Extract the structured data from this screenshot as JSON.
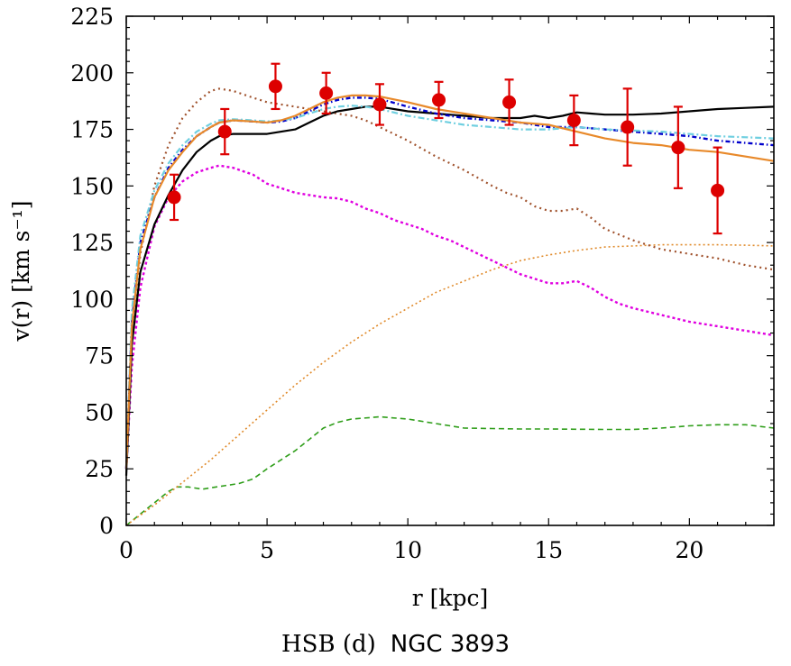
{
  "chart_data": {
    "type": "line",
    "xlabel": "r [kpc]",
    "ylabel": "v(r) [km s⁻¹]",
    "xlim": [
      0,
      23
    ],
    "ylim": [
      0,
      225
    ],
    "xticks": [
      0,
      5,
      10,
      15,
      20
    ],
    "yticks": [
      0,
      25,
      50,
      75,
      100,
      125,
      150,
      175,
      200,
      225
    ],
    "grid": false,
    "caption_left": "HSB (d)",
    "caption_right": "NGC 3893",
    "observed": {
      "color": "#dd0000",
      "points": [
        {
          "x": 1.7,
          "y": 145,
          "err": 10
        },
        {
          "x": 3.5,
          "y": 174,
          "err": 10
        },
        {
          "x": 5.3,
          "y": 194,
          "err": 10
        },
        {
          "x": 7.1,
          "y": 191,
          "err": 9
        },
        {
          "x": 9.0,
          "y": 186,
          "err": 9
        },
        {
          "x": 11.1,
          "y": 188,
          "err": 8
        },
        {
          "x": 13.6,
          "y": 187,
          "err": 10
        },
        {
          "x": 15.9,
          "y": 179,
          "err": 11
        },
        {
          "x": 17.8,
          "y": 176,
          "err": 17
        },
        {
          "x": 19.6,
          "y": 167,
          "err": 18
        },
        {
          "x": 21.0,
          "y": 148,
          "err": 19
        }
      ]
    },
    "series": [
      {
        "color": "#2f9e1a",
        "dash": "6,4",
        "width": 1.6,
        "x": [
          0,
          0.5,
          1,
          1.5,
          1.8,
          2.2,
          2.7,
          3.2,
          4,
          4.5,
          5,
          5.5,
          6,
          6.5,
          7,
          7.5,
          8,
          9,
          10,
          11,
          12,
          13,
          14,
          15,
          16,
          17,
          18,
          19,
          20,
          21,
          22,
          23
        ],
        "y": [
          0,
          5,
          10,
          15,
          17,
          17,
          16,
          17,
          18.5,
          20.5,
          25,
          29,
          33,
          38,
          43,
          45.5,
          47,
          48,
          47,
          45,
          43,
          42.8,
          42.6,
          42.6,
          42.5,
          42.4,
          42.4,
          43,
          44,
          44.5,
          44.5,
          43
        ]
      },
      {
        "color": "#e08a2a",
        "dash": "2,3",
        "width": 1.6,
        "x": [
          0,
          1,
          2,
          3,
          4,
          5,
          6,
          7,
          8,
          9,
          10,
          11,
          12,
          13,
          14,
          15,
          16,
          17,
          18,
          19,
          20,
          21,
          22,
          23
        ],
        "y": [
          0,
          9,
          19,
          29,
          40,
          51,
          62,
          72,
          81,
          89,
          96,
          103,
          108,
          113,
          117,
          119.5,
          121.5,
          123,
          123.5,
          124,
          124,
          124,
          123.8,
          123.5
        ]
      },
      {
        "color": "#e000e0",
        "dash": "3,3",
        "width": 2.4,
        "x": [
          0,
          0.2,
          0.5,
          1,
          1.5,
          2,
          2.5,
          3,
          3.3,
          3.8,
          4.5,
          5,
          5.5,
          6,
          6.5,
          7,
          7.5,
          8,
          8.5,
          9,
          9.5,
          10,
          10.5,
          11,
          11.5,
          12,
          12.5,
          13,
          13.5,
          14,
          14.5,
          15,
          15.5,
          16,
          16.5,
          17,
          17.5,
          18,
          19,
          20,
          21,
          22,
          23
        ],
        "y": [
          25,
          70,
          105,
          132,
          145,
          152,
          156,
          158,
          159,
          158,
          155,
          151,
          149,
          147,
          146,
          145,
          144.5,
          143,
          140,
          138,
          135,
          133,
          131,
          128,
          126,
          123,
          120,
          117,
          114,
          111,
          109,
          107,
          107,
          108,
          105,
          101,
          98,
          96,
          93,
          90,
          88,
          86,
          84
        ]
      },
      {
        "color": "#a0522d",
        "dash": "2,4",
        "width": 2.2,
        "x": [
          0,
          0.2,
          0.5,
          1,
          1.5,
          2,
          2.5,
          3,
          3.3,
          3.8,
          4.5,
          5,
          5.5,
          6,
          6.5,
          7,
          7.5,
          8,
          8.5,
          9,
          10,
          11,
          12,
          13,
          13.5,
          14,
          14.5,
          15,
          15.5,
          16,
          16.5,
          17,
          18,
          19,
          20,
          21,
          22,
          23
        ],
        "y": [
          25,
          80,
          120,
          150,
          168,
          180,
          187,
          192,
          193,
          192,
          189,
          187,
          186,
          185,
          184,
          183,
          182,
          181,
          179,
          176,
          170,
          163,
          157,
          150,
          147,
          145,
          141,
          139,
          139,
          140,
          136,
          131,
          126,
          122,
          120,
          118,
          115,
          113
        ]
      },
      {
        "color": "#000000",
        "dash": "",
        "width": 2.2,
        "x": [
          0,
          0.2,
          0.5,
          1,
          1.5,
          2,
          2.5,
          3,
          3.3,
          3.8,
          4.5,
          5,
          5.5,
          6,
          6.5,
          7,
          7.5,
          8,
          8.5,
          9,
          10,
          11,
          12,
          13,
          14,
          14.5,
          15,
          15.5,
          16,
          16.5,
          17,
          18,
          19,
          20,
          21,
          22,
          23
        ],
        "y": [
          22,
          80,
          112,
          133,
          146,
          157,
          165,
          170,
          172,
          173,
          173,
          173,
          174,
          175,
          178,
          181,
          183,
          184,
          185,
          185,
          183,
          182,
          181,
          180,
          180,
          181,
          180,
          181,
          182.5,
          182,
          181.5,
          181.5,
          182,
          183,
          184,
          184.5,
          185
        ]
      },
      {
        "color": "#0000cc",
        "dash": "5,3,1.5,3",
        "width": 2.4,
        "x": [
          0,
          0.2,
          0.5,
          1,
          1.5,
          2,
          2.5,
          3,
          3.3,
          3.8,
          4.5,
          5,
          5.5,
          6,
          6.5,
          7,
          7.5,
          8,
          8.5,
          9,
          10,
          11,
          12,
          13,
          14,
          15,
          16,
          17,
          18,
          19,
          20,
          21,
          22,
          23
        ],
        "y": [
          25,
          90,
          125,
          145,
          158,
          166,
          172,
          176,
          178,
          179,
          178.5,
          178,
          178.5,
          180,
          183,
          186,
          188,
          189,
          189,
          188.5,
          185,
          182,
          180,
          179,
          178,
          176,
          176,
          175,
          174,
          173,
          172,
          170,
          169,
          168
        ]
      },
      {
        "color": "#6fcfe0",
        "dash": "7,3,2,3",
        "width": 2.2,
        "x": [
          0,
          0.2,
          0.5,
          1,
          1.5,
          2,
          2.5,
          3,
          3.3,
          3.8,
          4.5,
          5,
          5.5,
          6,
          6.5,
          7,
          7.5,
          8,
          8.5,
          9,
          10,
          11,
          12,
          13,
          14,
          15,
          16,
          17,
          18,
          19,
          20,
          21,
          22,
          23
        ],
        "y": [
          25,
          95,
          128,
          148,
          160,
          168,
          174,
          177.5,
          179,
          179.5,
          179,
          178.5,
          179,
          180,
          182,
          184,
          185,
          185.5,
          185,
          184,
          181,
          179,
          177,
          176,
          175,
          175,
          176,
          175,
          174.5,
          174,
          173,
          172,
          171.5,
          171
        ]
      },
      {
        "color": "#e8892a",
        "dash": "",
        "width": 2.2,
        "x": [
          0,
          0.2,
          0.5,
          1,
          1.5,
          2,
          2.5,
          3,
          3.3,
          3.8,
          4.5,
          5,
          5.5,
          6,
          6.5,
          7,
          7.5,
          8,
          8.5,
          9,
          10,
          11,
          12,
          13,
          14,
          15,
          16,
          17,
          18,
          19,
          20,
          21,
          22,
          23
        ],
        "y": [
          25,
          88,
          122,
          145,
          157,
          165,
          172,
          176,
          178,
          179,
          178.5,
          178,
          179,
          181,
          184,
          187,
          189,
          190,
          190,
          189.5,
          187,
          184,
          182,
          180,
          178,
          177,
          174,
          171,
          169,
          168,
          166,
          165,
          163,
          161
        ]
      }
    ]
  }
}
